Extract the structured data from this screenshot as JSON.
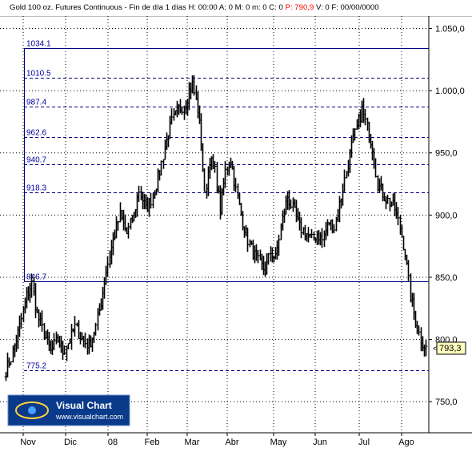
{
  "header": {
    "symbol": "Gold 100 oz. Futures Continuous",
    "timeframe": "Fin de día 1 días",
    "fields": [
      {
        "k": "H:",
        "v": "00:00"
      },
      {
        "k": "A:",
        "v": "0"
      },
      {
        "k": "M:",
        "v": "0"
      },
      {
        "k": "m:",
        "v": "0"
      },
      {
        "k": "C:",
        "v": "0"
      },
      {
        "k": "P:",
        "v": "790,9",
        "highlight": true
      },
      {
        "k": "V:",
        "v": "0"
      },
      {
        "k": "F:",
        "v": "00/00/0000"
      }
    ]
  },
  "logo": {
    "name": "Visual Chart",
    "url": "www.visualchart.com"
  },
  "last_price_label": "793,3",
  "colors": {
    "background": "#ffffff",
    "level_line": "#000080",
    "level_text": "#0000a0",
    "grid": "#000000",
    "price_tag": "#ffffc0",
    "highlight": "#ff0000",
    "logo_bg": "#0a3a8a"
  },
  "chart_data": {
    "type": "ohlc",
    "title": "Gold 100 oz. Futures Continuous",
    "ylim": [
      725,
      1060
    ],
    "y_ticks": [
      {
        "v": 750,
        "label": "750,0"
      },
      {
        "v": 800,
        "label": "800,0"
      },
      {
        "v": 850,
        "label": "850,0"
      },
      {
        "v": 900,
        "label": "900,0"
      },
      {
        "v": 950,
        "label": "950,0"
      },
      {
        "v": 1000,
        "label": "1.000,0"
      },
      {
        "v": 1050,
        "label": "1.050,0"
      }
    ],
    "x_labels": [
      "Nov",
      "Dic",
      "08",
      "Feb",
      "Mar",
      "Abr",
      "May",
      "Jun",
      "Jul",
      "Ago"
    ],
    "fib_levels": [
      {
        "v": 1034.1,
        "label": "1034.1",
        "style": "solid"
      },
      {
        "v": 1010.5,
        "label": "1010.5",
        "style": "dashed"
      },
      {
        "v": 987.4,
        "label": "987.4",
        "style": "dashed"
      },
      {
        "v": 962.6,
        "label": "962.6",
        "style": "dashed"
      },
      {
        "v": 940.7,
        "label": "940.7",
        "style": "dashed"
      },
      {
        "v": 918.3,
        "label": "918.3",
        "style": "dashed"
      },
      {
        "v": 846.7,
        "label": "846.7",
        "style": "solid"
      },
      {
        "v": 775.2,
        "label": "775.2",
        "style": "dashed"
      }
    ],
    "grid": "dotted",
    "last_price": 793.3,
    "close_path": [
      [
        0,
        775
      ],
      [
        3,
        785
      ],
      [
        8,
        810
      ],
      [
        12,
        835
      ],
      [
        15,
        845
      ],
      [
        18,
        820
      ],
      [
        22,
        805
      ],
      [
        26,
        790
      ],
      [
        30,
        800
      ],
      [
        33,
        790
      ],
      [
        37,
        800
      ],
      [
        40,
        810
      ],
      [
        44,
        800
      ],
      [
        48,
        795
      ],
      [
        52,
        810
      ],
      [
        55,
        830
      ],
      [
        58,
        855
      ],
      [
        62,
        880
      ],
      [
        66,
        900
      ],
      [
        70,
        885
      ],
      [
        74,
        900
      ],
      [
        77,
        920
      ],
      [
        81,
        905
      ],
      [
        85,
        915
      ],
      [
        89,
        935
      ],
      [
        92,
        955
      ],
      [
        96,
        975
      ],
      [
        100,
        985
      ],
      [
        104,
        990
      ],
      [
        106,
        1000
      ],
      [
        108,
        1005
      ],
      [
        111,
        985
      ],
      [
        113,
        960
      ],
      [
        115,
        915
      ],
      [
        118,
        945
      ],
      [
        121,
        935
      ],
      [
        124,
        905
      ],
      [
        127,
        935
      ],
      [
        130,
        945
      ],
      [
        133,
        920
      ],
      [
        136,
        900
      ],
      [
        140,
        880
      ],
      [
        143,
        870
      ],
      [
        147,
        860
      ],
      [
        150,
        855
      ],
      [
        153,
        870
      ],
      [
        156,
        865
      ],
      [
        159,
        890
      ],
      [
        163,
        915
      ],
      [
        166,
        905
      ],
      [
        170,
        890
      ],
      [
        174,
        885
      ],
      [
        177,
        880
      ],
      [
        180,
        885
      ],
      [
        183,
        880
      ],
      [
        187,
        895
      ],
      [
        190,
        890
      ],
      [
        194,
        915
      ],
      [
        197,
        935
      ],
      [
        200,
        955
      ],
      [
        203,
        970
      ],
      [
        206,
        985
      ],
      [
        209,
        970
      ],
      [
        212,
        955
      ],
      [
        215,
        925
      ],
      [
        219,
        915
      ],
      [
        222,
        910
      ],
      [
        225,
        905
      ],
      [
        228,
        890
      ],
      [
        231,
        870
      ],
      [
        234,
        835
      ],
      [
        237,
        815
      ],
      [
        240,
        800
      ],
      [
        243,
        793
      ]
    ]
  }
}
